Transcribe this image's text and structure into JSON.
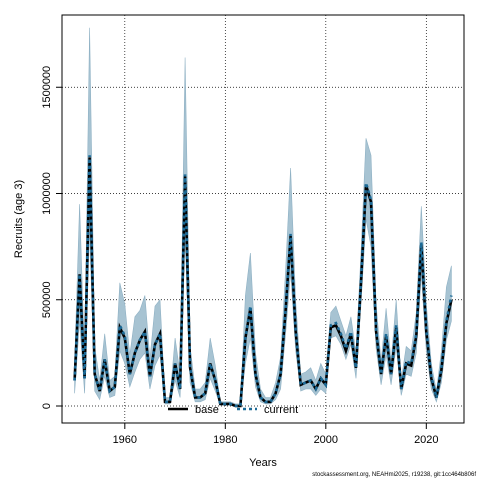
{
  "chart_data": {
    "type": "line",
    "xlabel": "Years",
    "ylabel": "Recruits (age 3)",
    "xlim": [
      1947.5,
      2027.5
    ],
    "ylim": [
      -80000,
      1840000
    ],
    "x_ticks": [
      1960,
      1980,
      2000,
      2020
    ],
    "y_ticks": [
      0,
      500000,
      1000000,
      1500000
    ],
    "x_tick_labels": [
      "1960",
      "1980",
      "2000",
      "2020"
    ],
    "y_tick_labels": [
      "0",
      "500000",
      "1000000",
      "1500000"
    ],
    "grid": true,
    "legend_position": "bottom-center",
    "colors": {
      "band": "#a7c3d2",
      "band_edge": "#8fb1c4",
      "base": "#000000",
      "current": "#1c6a96"
    },
    "x": [
      1950,
      1951,
      1952,
      1953,
      1954,
      1955,
      1956,
      1957,
      1958,
      1959,
      1960,
      1961,
      1962,
      1963,
      1964,
      1965,
      1966,
      1967,
      1968,
      1969,
      1970,
      1971,
      1972,
      1973,
      1974,
      1975,
      1976,
      1977,
      1978,
      1979,
      1980,
      1981,
      1982,
      1983,
      1984,
      1985,
      1986,
      1987,
      1988,
      1989,
      1990,
      1991,
      1992,
      1993,
      1994,
      1995,
      1996,
      1997,
      1998,
      1999,
      2000,
      2001,
      2002,
      2003,
      2004,
      2005,
      2006,
      2007,
      2008,
      2009,
      2010,
      2011,
      2012,
      2013,
      2014,
      2015,
      2016,
      2017,
      2018,
      2019,
      2020,
      2021,
      2022,
      2023,
      2024,
      2025
    ],
    "series": [
      {
        "name": "base",
        "style": "solid",
        "values": [
          120000,
          620000,
          130000,
          1170000,
          150000,
          70000,
          220000,
          70000,
          90000,
          370000,
          320000,
          150000,
          250000,
          310000,
          350000,
          140000,
          290000,
          340000,
          20000,
          20000,
          200000,
          80000,
          1080000,
          180000,
          40000,
          40000,
          60000,
          200000,
          120000,
          10000,
          10000,
          10000,
          0,
          0,
          320000,
          460000,
          150000,
          40000,
          20000,
          20000,
          60000,
          150000,
          450000,
          800000,
          350000,
          100000,
          110000,
          120000,
          80000,
          130000,
          100000,
          370000,
          380000,
          330000,
          260000,
          340000,
          180000,
          580000,
          1040000,
          960000,
          350000,
          150000,
          330000,
          150000,
          370000,
          80000,
          200000,
          190000,
          330000,
          760000,
          350000,
          130000,
          40000,
          170000,
          390000,
          500000
        ]
      },
      {
        "name": "current",
        "style": "dashed",
        "values": [
          120000,
          620000,
          130000,
          1180000,
          150000,
          70000,
          220000,
          70000,
          90000,
          380000,
          330000,
          150000,
          250000,
          310000,
          350000,
          140000,
          290000,
          340000,
          20000,
          20000,
          200000,
          80000,
          1090000,
          180000,
          40000,
          40000,
          60000,
          200000,
          120000,
          10000,
          10000,
          10000,
          0,
          0,
          320000,
          470000,
          150000,
          40000,
          20000,
          20000,
          60000,
          150000,
          460000,
          810000,
          350000,
          100000,
          110000,
          120000,
          80000,
          130000,
          100000,
          380000,
          390000,
          340000,
          270000,
          350000,
          180000,
          590000,
          1050000,
          970000,
          360000,
          150000,
          340000,
          150000,
          380000,
          80000,
          210000,
          200000,
          340000,
          770000,
          360000,
          140000,
          40000,
          180000,
          400000,
          520000
        ]
      }
    ],
    "band_lower": [
      60000,
      400000,
      60000,
      830000,
      70000,
      30000,
      140000,
      40000,
      50000,
      260000,
      200000,
      90000,
      160000,
      220000,
      250000,
      80000,
      190000,
      240000,
      10000,
      10000,
      120000,
      40000,
      800000,
      110000,
      20000,
      20000,
      30000,
      130000,
      70000,
      5000,
      5000,
      5000,
      0,
      0,
      200000,
      320000,
      90000,
      20000,
      10000,
      10000,
      30000,
      80000,
      340000,
      630000,
      260000,
      70000,
      80000,
      80000,
      50000,
      80000,
      60000,
      320000,
      330000,
      290000,
      220000,
      290000,
      130000,
      480000,
      880000,
      750000,
      270000,
      100000,
      240000,
      100000,
      280000,
      50000,
      150000,
      140000,
      250000,
      620000,
      260000,
      80000,
      20000,
      110000,
      310000,
      400000
    ],
    "band_upper": [
      200000,
      950000,
      220000,
      1780000,
      280000,
      120000,
      340000,
      120000,
      140000,
      580000,
      480000,
      240000,
      420000,
      450000,
      520000,
      220000,
      470000,
      500000,
      40000,
      40000,
      320000,
      150000,
      1640000,
      280000,
      80000,
      80000,
      110000,
      320000,
      190000,
      20000,
      20000,
      20000,
      10000,
      10000,
      520000,
      720000,
      250000,
      80000,
      40000,
      40000,
      110000,
      230000,
      640000,
      1120000,
      490000,
      150000,
      160000,
      180000,
      120000,
      200000,
      150000,
      440000,
      470000,
      400000,
      330000,
      420000,
      250000,
      720000,
      1260000,
      1180000,
      480000,
      210000,
      460000,
      210000,
      500000,
      120000,
      280000,
      260000,
      440000,
      940000,
      480000,
      200000,
      70000,
      260000,
      560000,
      660000
    ]
  },
  "footer_text": "stockassessment.org, NEAHmi2025, r19238, git:1cc464b806f"
}
